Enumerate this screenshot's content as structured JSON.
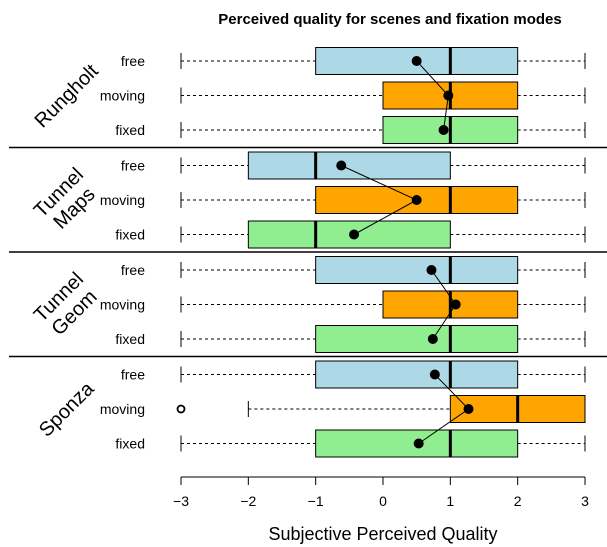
{
  "chart_data": {
    "type": "boxplot",
    "title": "Perceived quality for scenes and fixation modes",
    "xlabel": "Subjective Perceived Quality",
    "xlim": [
      -3,
      3
    ],
    "xticks": [
      -3,
      -2,
      -1,
      0,
      1,
      2,
      3
    ],
    "colors": {
      "free": "#add8e6",
      "moving": "#ffa500",
      "fixed": "#90ee90"
    },
    "groups": [
      {
        "scene": "Rungholt",
        "scene_lines": [
          "Rungholt"
        ],
        "modes": [
          {
            "mode": "free",
            "whisker_low": -3,
            "q1": -1,
            "median": 1,
            "q3": 2,
            "whisker_high": 3,
            "mean": 0.5,
            "outliers": []
          },
          {
            "mode": "moving",
            "whisker_low": -3,
            "q1": 0,
            "median": 1,
            "q3": 2,
            "whisker_high": 3,
            "mean": 0.97,
            "outliers": []
          },
          {
            "mode": "fixed",
            "whisker_low": -3,
            "q1": 0,
            "median": 1,
            "q3": 2,
            "whisker_high": 3,
            "mean": 0.9,
            "outliers": []
          }
        ]
      },
      {
        "scene": "Tunnel Maps",
        "scene_lines": [
          "Tunnel",
          "Maps"
        ],
        "modes": [
          {
            "mode": "free",
            "whisker_low": -3,
            "q1": -2,
            "median": -1,
            "q3": 1,
            "whisker_high": 3,
            "mean": -0.62,
            "outliers": []
          },
          {
            "mode": "moving",
            "whisker_low": -3,
            "q1": -1,
            "median": 1,
            "q3": 2,
            "whisker_high": 3,
            "mean": 0.5,
            "outliers": []
          },
          {
            "mode": "fixed",
            "whisker_low": -3,
            "q1": -2,
            "median": -1,
            "q3": 1,
            "whisker_high": 3,
            "mean": -0.43,
            "outliers": []
          }
        ]
      },
      {
        "scene": "Tunnel Geom",
        "scene_lines": [
          "Tunnel",
          "Geom"
        ],
        "modes": [
          {
            "mode": "free",
            "whisker_low": -3,
            "q1": -1,
            "median": 1,
            "q3": 2,
            "whisker_high": 3,
            "mean": 0.72,
            "outliers": []
          },
          {
            "mode": "moving",
            "whisker_low": -3,
            "q1": 0,
            "median": 1,
            "q3": 2,
            "whisker_high": 3,
            "mean": 1.08,
            "outliers": []
          },
          {
            "mode": "fixed",
            "whisker_low": -3,
            "q1": -1,
            "median": 1,
            "q3": 2,
            "whisker_high": 3,
            "mean": 0.74,
            "outliers": []
          }
        ]
      },
      {
        "scene": "Sponza",
        "scene_lines": [
          "Sponza"
        ],
        "modes": [
          {
            "mode": "free",
            "whisker_low": -3,
            "q1": -1,
            "median": 1,
            "q3": 2,
            "whisker_high": 3,
            "mean": 0.77,
            "outliers": []
          },
          {
            "mode": "moving",
            "whisker_low": -2,
            "q1": 1,
            "median": 2,
            "q3": 3,
            "whisker_high": 3,
            "mean": 1.27,
            "outliers": [
              -3
            ]
          },
          {
            "mode": "fixed",
            "whisker_low": -3,
            "q1": -1,
            "median": 1,
            "q3": 2,
            "whisker_high": 3,
            "mean": 0.53,
            "outliers": []
          }
        ]
      }
    ]
  }
}
